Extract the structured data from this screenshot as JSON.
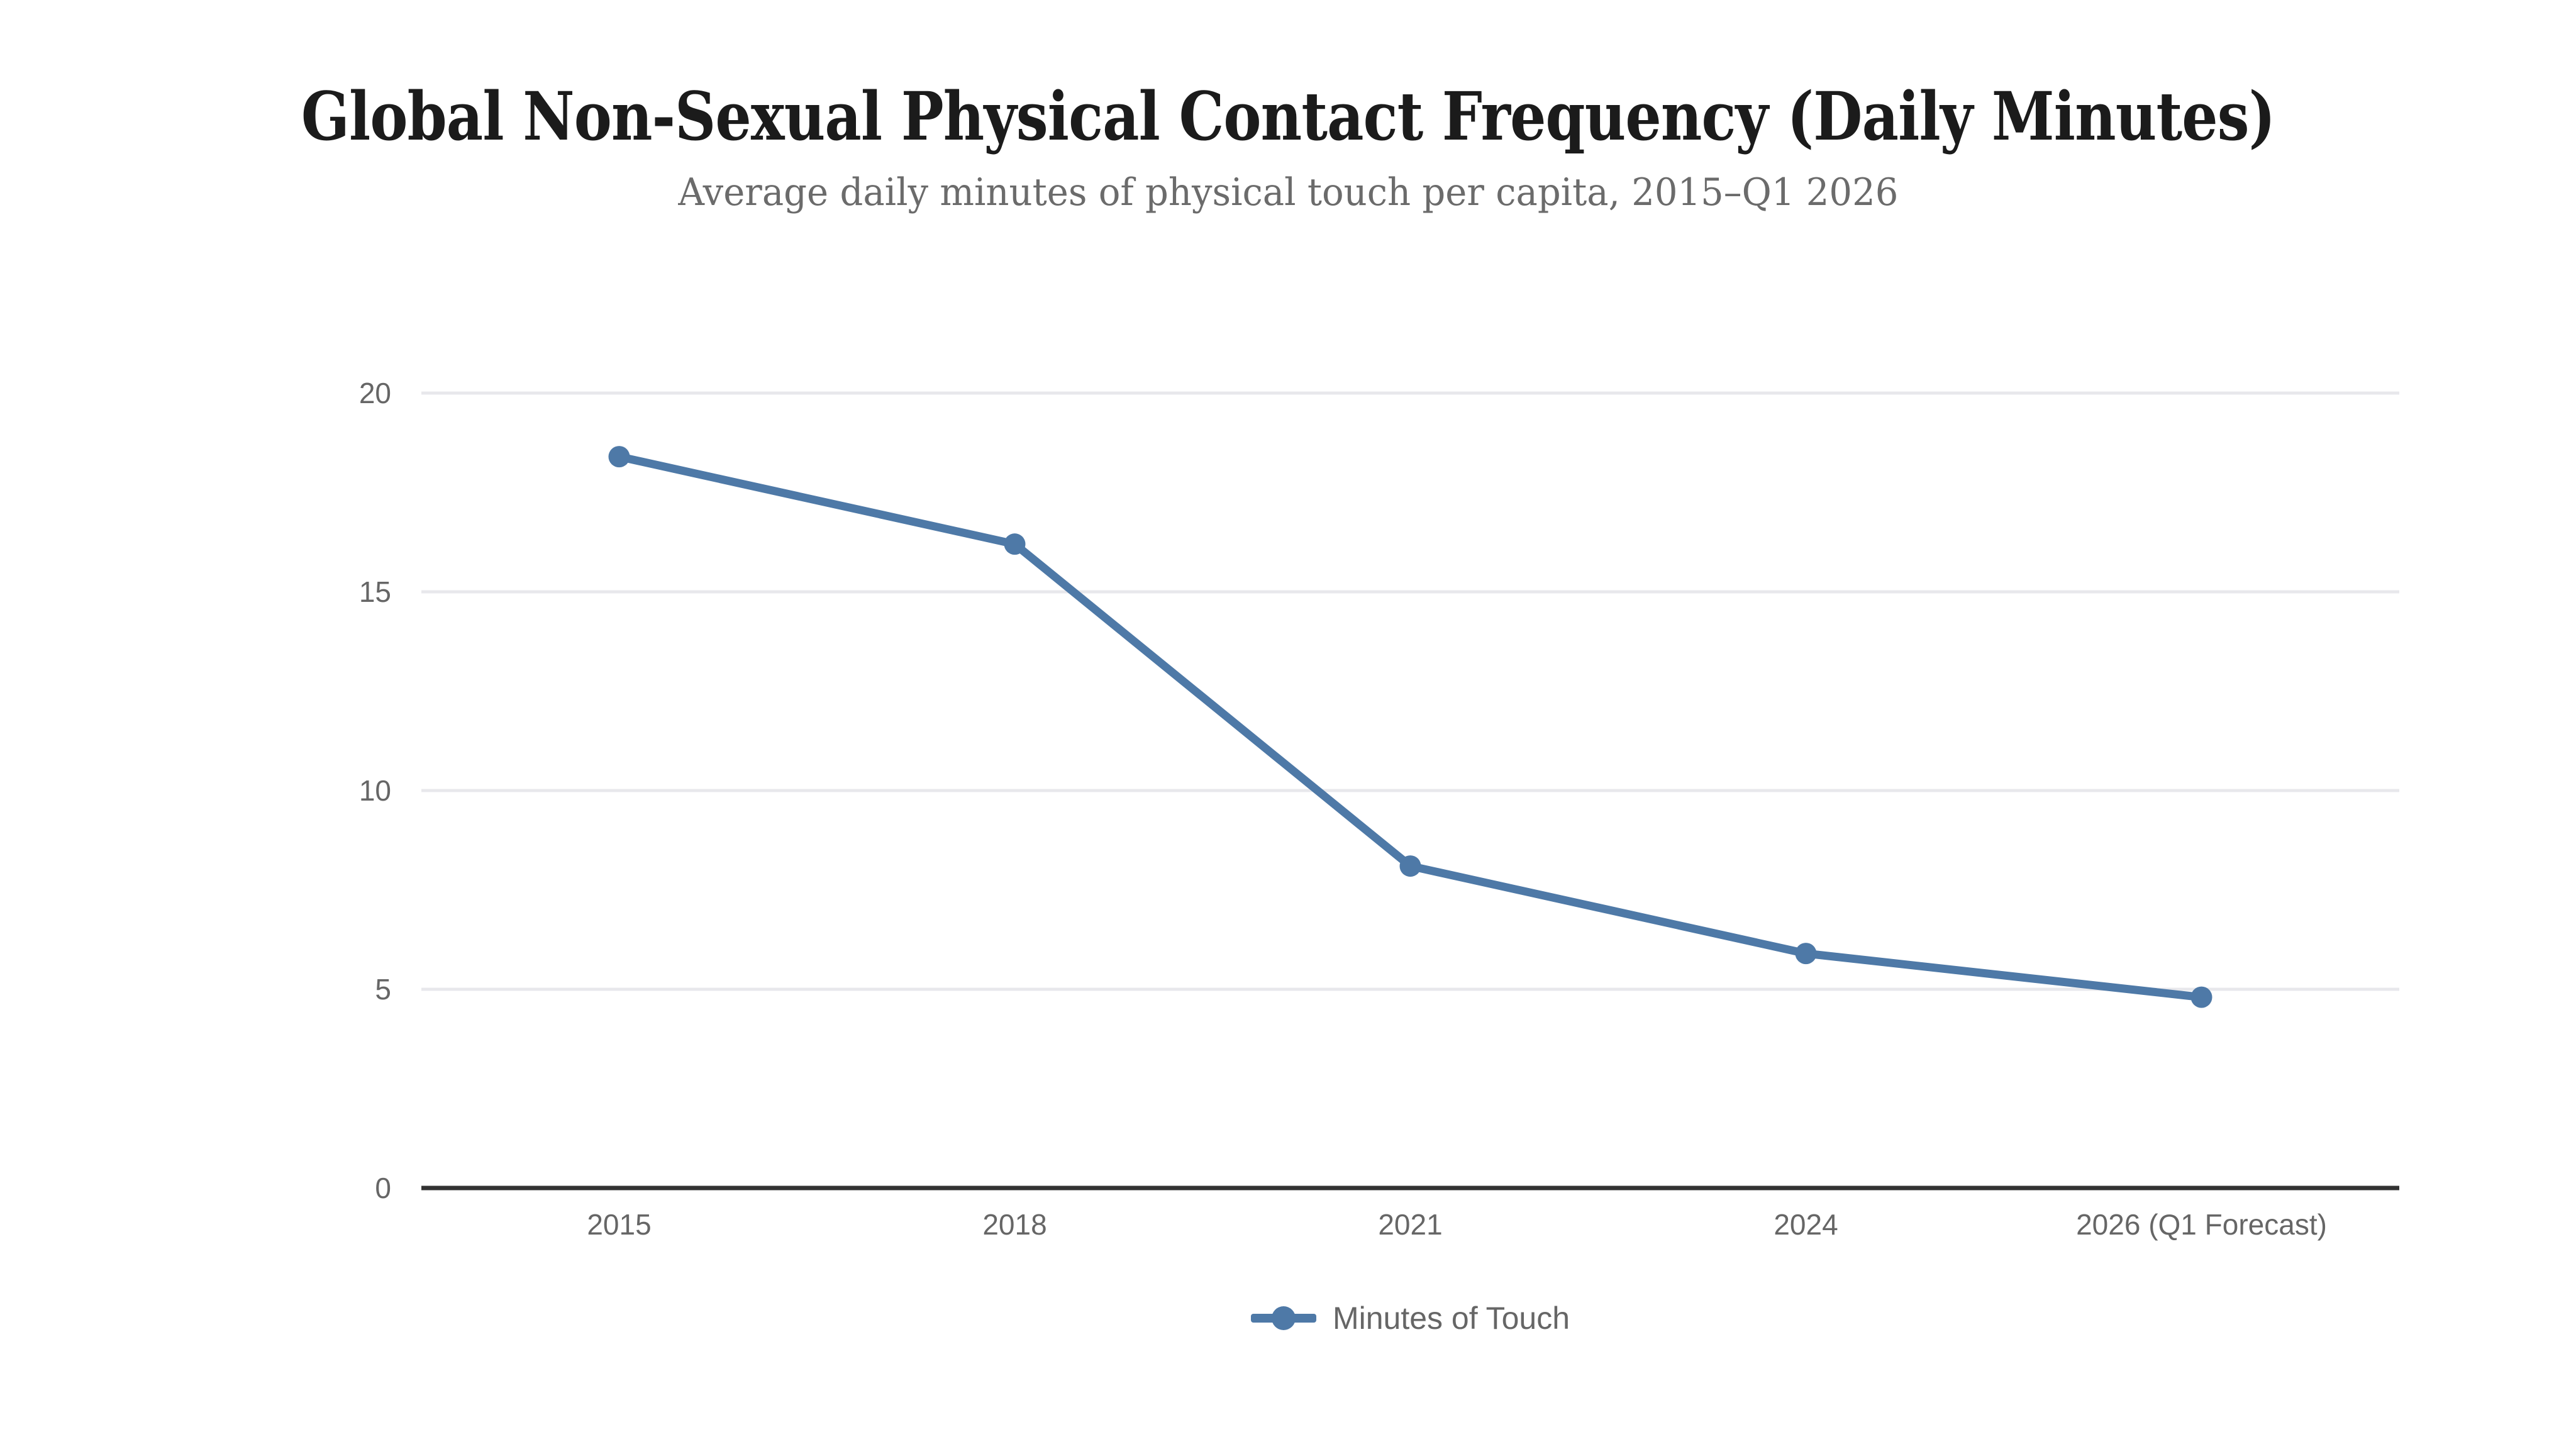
{
  "header": {
    "title": "Global Non-Sexual Physical Contact Frequency (Daily Minutes)",
    "subtitle": "Average daily minutes of physical touch per capita, 2015–Q1 2026"
  },
  "chart_data": {
    "type": "line",
    "title": "Global Non-Sexual Physical Contact Frequency (Daily Minutes)",
    "subtitle": "Average daily minutes of physical touch per capita, 2015–Q1 2026",
    "categories": [
      "2015",
      "2018",
      "2021",
      "2024",
      "2026 (Q1 Forecast)"
    ],
    "series": [
      {
        "name": "Minutes of Touch",
        "values": [
          18.4,
          16.2,
          8.1,
          5.9,
          4.8
        ],
        "color": "#4E79A7"
      }
    ],
    "xlabel": "",
    "ylabel": "",
    "ylim": [
      0,
      20
    ],
    "yticks": [
      0,
      5,
      10,
      15,
      20
    ],
    "grid": true,
    "legend_position": "bottom-center"
  },
  "legend": {
    "items": [
      {
        "label": "Minutes of Touch",
        "color": "#4E79A7",
        "marker": "line-dot"
      }
    ]
  },
  "colors": {
    "background": "#ffffff",
    "line": "#4E79A7",
    "title": "#1b1b1b",
    "subtitle": "#6b6b6b",
    "tick": "#666666",
    "grid": "#e8e8ec",
    "axis": "#323232"
  }
}
